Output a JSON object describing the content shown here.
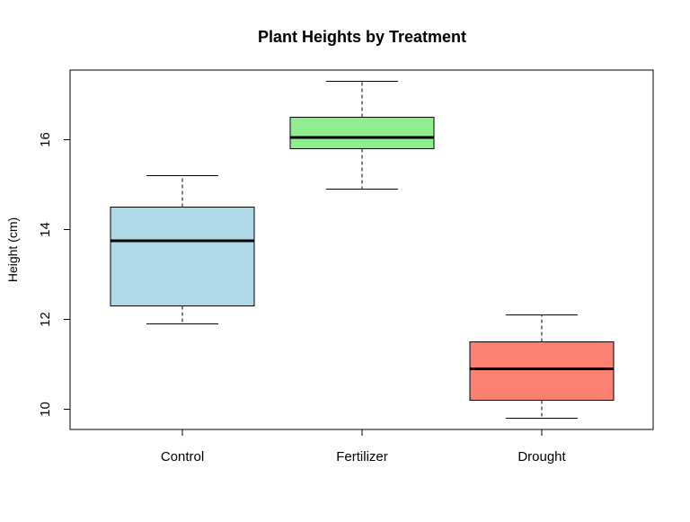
{
  "chart_data": {
    "type": "boxplot",
    "title": "Plant Heights by Treatment",
    "xlabel": "",
    "ylabel": "Height (cm)",
    "ylim": [
      9.55,
      17.55
    ],
    "yticks": [
      "10",
      "12",
      "14",
      "16"
    ],
    "grid": false,
    "legend": "none",
    "categories": [
      "Control",
      "Fertilizer",
      "Drought"
    ],
    "boxes": [
      {
        "category": "Control",
        "whisker_low": 11.9,
        "q1": 12.3,
        "median": 13.75,
        "q3": 14.5,
        "whisker_high": 15.2,
        "color": "#add8e6"
      },
      {
        "category": "Fertilizer",
        "whisker_low": 14.9,
        "q1": 15.8,
        "median": 16.05,
        "q3": 16.5,
        "whisker_high": 17.3,
        "color": "#90ee90"
      },
      {
        "category": "Drought",
        "whisker_low": 9.8,
        "q1": 10.2,
        "median": 10.9,
        "q3": 11.5,
        "whisker_high": 12.1,
        "color": "#fa8072"
      }
    ]
  }
}
